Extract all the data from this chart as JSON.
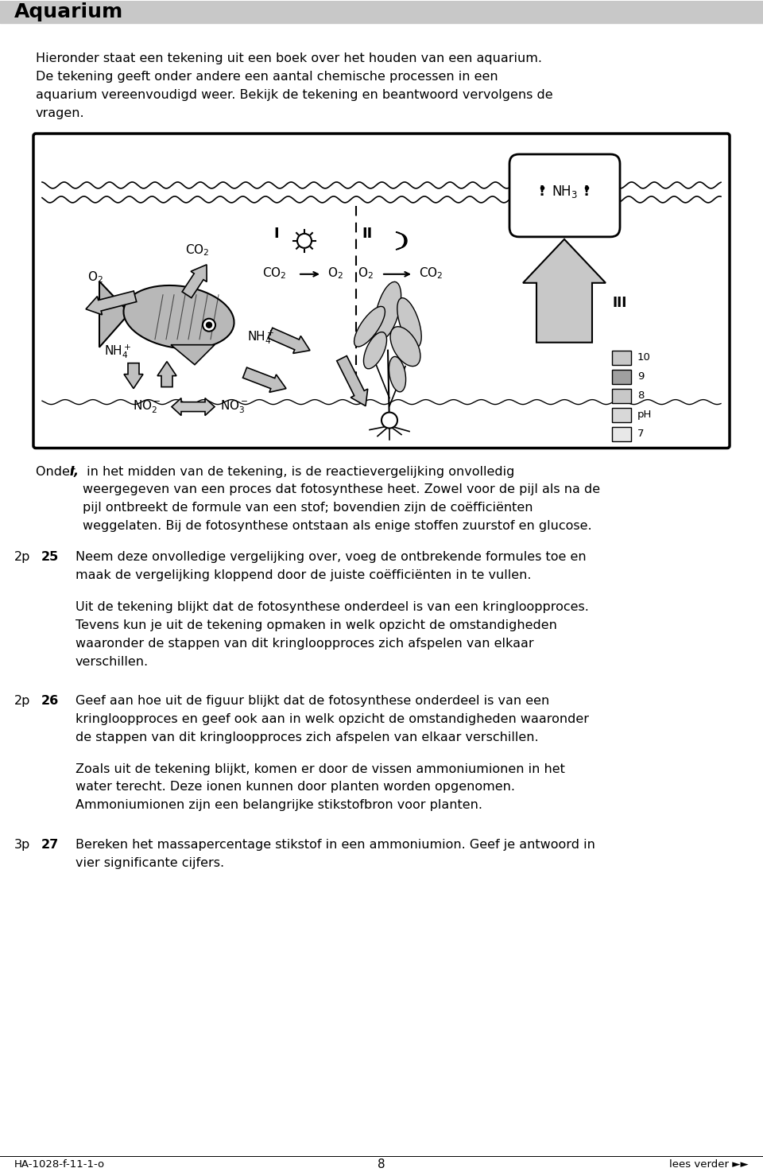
{
  "title": "Aquarium",
  "title_bar_color": "#c8c8c8",
  "bg_color": "#ffffff",
  "intro_text": "Hieronder staat een tekening uit een boek over het houden van een aquarium.\nDe tekening geeft onder andere een aantal chemische processen in een\naquarium vereenvoudigd weer. Bekijk de tekening en beantwoord vervolgens de\nvragen.",
  "questions": [
    {
      "points": "2p",
      "number": "25",
      "text": "Neem deze onvolledige vergelijking over, voeg de ontbrekende formules toe en\nmaak de vergelijking kloppend door de juiste coëfficiënten in te vullen.",
      "continuation": "Uit de tekening blijkt dat de fotosynthese onderdeel is van een kringloopproces.\nTevens kun je uit de tekening opmaken in welk opzicht de omstandigheden\nwaaronder de stappen van dit kringloopproces zich afspelen van elkaar\nverschillen."
    },
    {
      "points": "2p",
      "number": "26",
      "text": "Geef aan hoe uit de figuur blijkt dat de fotosynthese onderdeel is van een\nkringloopproces en geef ook aan in welk opzicht de omstandigheden waaronder\nde stappen van dit kringloopproces zich afspelen van elkaar verschillen.",
      "continuation": "Zoals uit de tekening blijkt, komen er door de vissen ammoniumionen in het\nwater terecht. Deze ionen kunnen door planten worden opgenomen.\nAmmoniumionen zijn een belangrijke stikstofbron voor planten."
    },
    {
      "points": "3p",
      "number": "27",
      "text": "Bereken het massapercentage stikstof in een ammoniumion. Geef je antwoord in\nvier significante cijfers.",
      "continuation": ""
    }
  ],
  "footer_left": "HA-1028-f-11-1-o",
  "footer_center": "8",
  "footer_right": "lees verder ►►"
}
